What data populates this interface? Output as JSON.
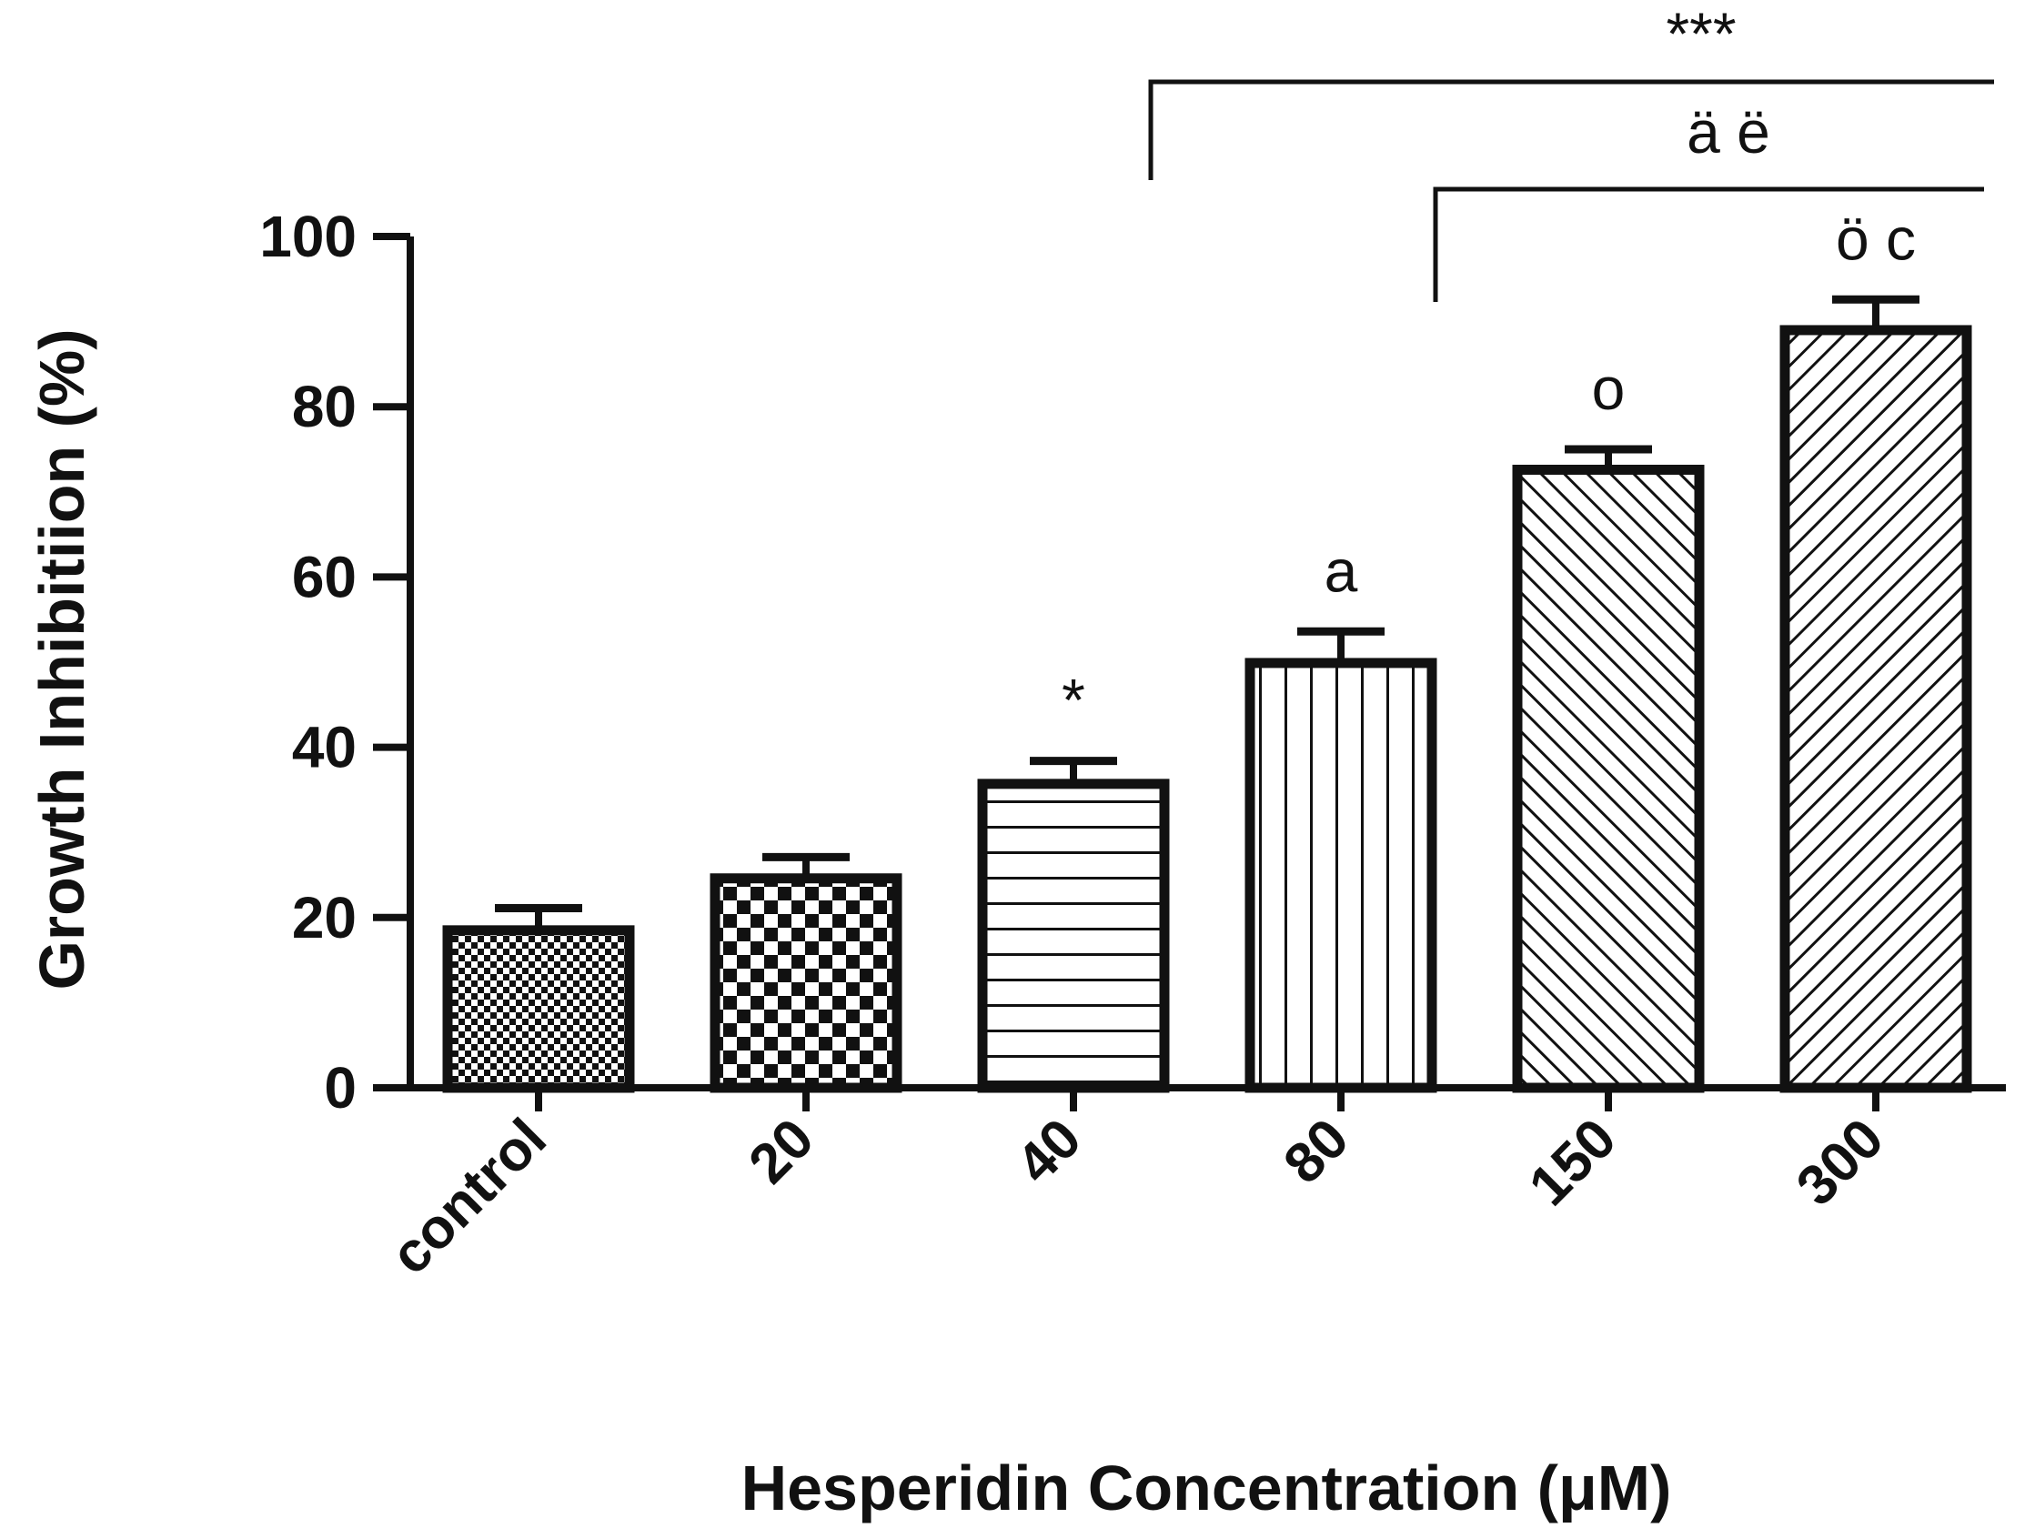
{
  "chart_data": {
    "type": "bar",
    "title": "",
    "xlabel": "Hesperidin Concentration (μM)",
    "ylabel": "Growth Inhibitiion (%)",
    "ylim": [
      0,
      100
    ],
    "yticks": [
      "0",
      "20",
      "40",
      "60",
      "80",
      "100"
    ],
    "categories": [
      "control",
      "20",
      "40",
      "80",
      "150",
      "300"
    ],
    "values": [
      18.5,
      24.6,
      35.7,
      49.9,
      72.6,
      89.0
    ],
    "error_bars": [
      2.6,
      2.5,
      2.7,
      3.7,
      2.4,
      3.6
    ],
    "bar_patterns": [
      "fine-checker",
      "checker",
      "horizontal-lines",
      "vertical-lines",
      "diagonal-up",
      "diagonal-down"
    ],
    "bar_annotations": [
      "",
      "",
      "*",
      "a",
      "o",
      "ö c"
    ],
    "brackets": [
      {
        "label": "***",
        "from_category": "40",
        "to_category": "300"
      },
      {
        "label": "ä ë",
        "from_category": "80",
        "to_category": "300"
      }
    ],
    "grid": false,
    "legend": "none",
    "colors": {
      "stroke": "#111111",
      "fill": "#ffffff"
    }
  }
}
